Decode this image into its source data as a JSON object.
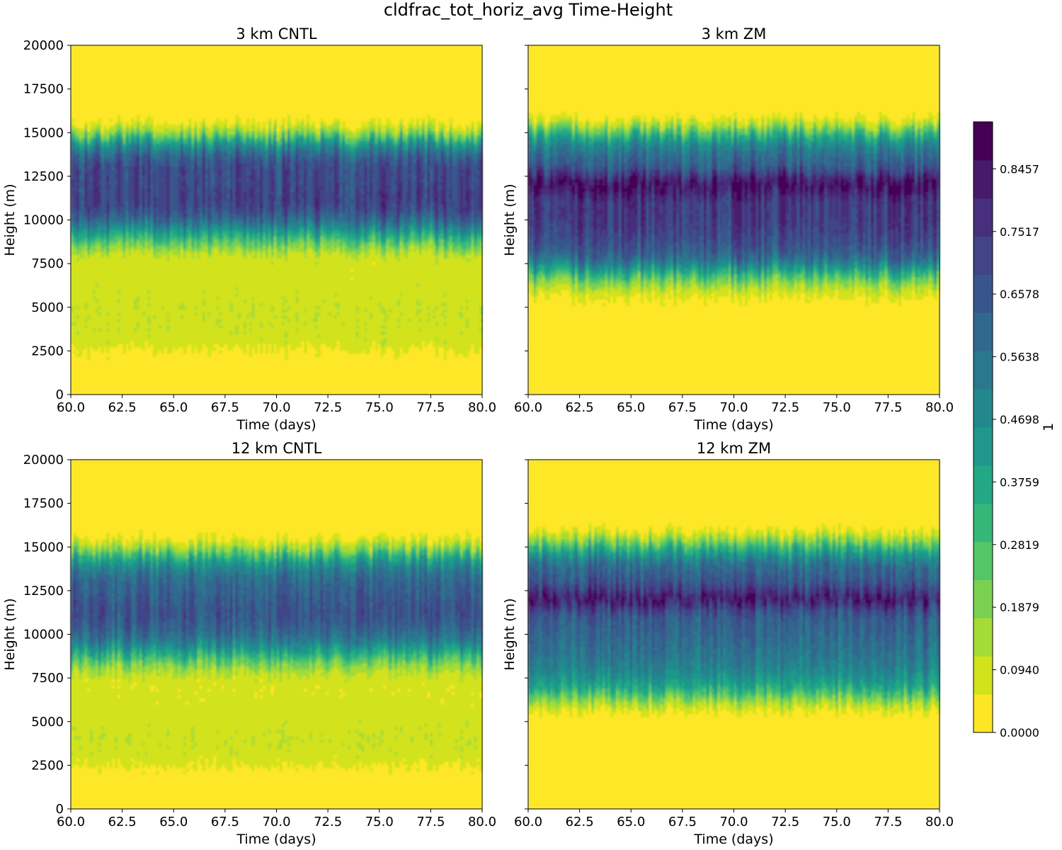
{
  "figure": {
    "title": "cldfrac_tot_horiz_avg Time-Height"
  },
  "colorbar": {
    "label": "1",
    "tick_labels": [
      "0.0000",
      "0.0940",
      "0.1879",
      "0.2819",
      "0.3759",
      "0.4698",
      "0.5638",
      "0.6578",
      "0.7517",
      "0.8457"
    ],
    "ticks": [
      0.0,
      0.094,
      0.1879,
      0.2819,
      0.3759,
      0.4698,
      0.5638,
      0.6578,
      0.7517,
      0.8457
    ],
    "range": [
      0.0,
      0.9162
    ],
    "levels": 19,
    "colormap": "viridis_r",
    "colors": [
      "#fde725",
      "#d2e21b",
      "#a5db36",
      "#7ad151",
      "#54c568",
      "#35b779",
      "#22a884",
      "#1f988b",
      "#23888e",
      "#2a788e",
      "#31688e",
      "#39568c",
      "#414487",
      "#472f7d",
      "#481a6c",
      "#440154"
    ]
  },
  "chart_data": [
    {
      "type": "heatmap",
      "title": "3 km CNTL",
      "xlabel": "Time (days)",
      "ylabel": "Height (m)",
      "xlim": [
        60.0,
        80.0
      ],
      "ylim": [
        0,
        20000
      ],
      "x_ticks": [
        "60.0",
        "62.5",
        "65.0",
        "67.5",
        "70.0",
        "72.5",
        "75.0",
        "77.5",
        "80.0"
      ],
      "y_ticks": [
        "0",
        "2500",
        "5000",
        "7500",
        "10000",
        "12500",
        "15000",
        "17500",
        "20000"
      ],
      "profile_height_m": [
        0,
        1000,
        2000,
        2500,
        3000,
        4000,
        5000,
        6000,
        7000,
        7500,
        8000,
        8500,
        9000,
        9500,
        10000,
        10500,
        11000,
        11500,
        12000,
        12500,
        13000,
        13500,
        14000,
        14500,
        15000,
        15500,
        16000,
        17000,
        20000
      ],
      "profile_cldfrac": [
        0.0,
        0.0,
        0.02,
        0.05,
        0.09,
        0.1,
        0.1,
        0.09,
        0.08,
        0.08,
        0.1,
        0.2,
        0.33,
        0.47,
        0.6,
        0.68,
        0.72,
        0.72,
        0.7,
        0.7,
        0.7,
        0.65,
        0.55,
        0.4,
        0.18,
        0.06,
        0.0,
        0.0,
        0.0
      ]
    },
    {
      "type": "heatmap",
      "title": "3 km ZM",
      "xlabel": "Time (days)",
      "ylabel": "Height (m)",
      "xlim": [
        60.0,
        80.0
      ],
      "ylim": [
        0,
        20000
      ],
      "x_ticks": [
        "60.0",
        "62.5",
        "65.0",
        "67.5",
        "70.0",
        "72.5",
        "75.0",
        "77.5",
        "80.0"
      ],
      "y_ticks": [
        "0",
        "2500",
        "5000",
        "7500",
        "10000",
        "12500",
        "15000",
        "17500",
        "20000"
      ],
      "profile_height_m": [
        0,
        1000,
        2000,
        3000,
        4000,
        5000,
        5500,
        6000,
        6500,
        7000,
        7500,
        8000,
        9000,
        10000,
        11000,
        11500,
        12000,
        12500,
        13000,
        14000,
        14500,
        15000,
        15500,
        16000,
        17000,
        20000
      ],
      "profile_cldfrac": [
        0.0,
        0.0,
        0.0,
        0.0,
        0.0,
        0.02,
        0.05,
        0.1,
        0.2,
        0.35,
        0.5,
        0.62,
        0.7,
        0.74,
        0.74,
        0.8,
        0.88,
        0.78,
        0.65,
        0.55,
        0.45,
        0.3,
        0.12,
        0.02,
        0.0,
        0.0
      ]
    },
    {
      "type": "heatmap",
      "title": "12 km CNTL",
      "xlabel": "Time (days)",
      "ylabel": "Height (m)",
      "xlim": [
        60.0,
        80.0
      ],
      "ylim": [
        0,
        20000
      ],
      "x_ticks": [
        "60.0",
        "62.5",
        "65.0",
        "67.5",
        "70.0",
        "72.5",
        "75.0",
        "77.5",
        "80.0"
      ],
      "y_ticks": [
        "0",
        "2500",
        "5000",
        "7500",
        "10000",
        "12500",
        "15000",
        "17500",
        "20000"
      ],
      "profile_height_m": [
        0,
        1000,
        2000,
        2500,
        3000,
        4000,
        5000,
        6000,
        7000,
        7500,
        8000,
        8500,
        9000,
        9500,
        10000,
        10500,
        11000,
        11500,
        12000,
        12500,
        13000,
        13500,
        14000,
        14500,
        15000,
        15500,
        16000,
        17000,
        20000
      ],
      "profile_cldfrac": [
        0.0,
        0.0,
        0.02,
        0.06,
        0.09,
        0.1,
        0.09,
        0.08,
        0.07,
        0.09,
        0.14,
        0.25,
        0.38,
        0.5,
        0.58,
        0.63,
        0.66,
        0.66,
        0.64,
        0.62,
        0.6,
        0.55,
        0.46,
        0.33,
        0.15,
        0.05,
        0.0,
        0.0,
        0.0
      ]
    },
    {
      "type": "heatmap",
      "title": "12 km ZM",
      "xlabel": "Time (days)",
      "ylabel": "Height (m)",
      "xlim": [
        60.0,
        80.0
      ],
      "ylim": [
        0,
        20000
      ],
      "x_ticks": [
        "60.0",
        "62.5",
        "65.0",
        "67.5",
        "70.0",
        "72.5",
        "75.0",
        "77.5",
        "80.0"
      ],
      "y_ticks": [
        "0",
        "2500",
        "5000",
        "7500",
        "10000",
        "12500",
        "15000",
        "17500",
        "20000"
      ],
      "profile_height_m": [
        0,
        1000,
        2000,
        3000,
        4000,
        5000,
        5500,
        6000,
        6500,
        7000,
        8000,
        9000,
        10000,
        11000,
        11500,
        12000,
        12500,
        13000,
        14000,
        14500,
        15000,
        15500,
        16000,
        17000,
        20000
      ],
      "profile_cldfrac": [
        0.0,
        0.0,
        0.0,
        0.0,
        0.0,
        0.0,
        0.04,
        0.12,
        0.25,
        0.38,
        0.5,
        0.56,
        0.6,
        0.64,
        0.72,
        0.84,
        0.75,
        0.66,
        0.58,
        0.46,
        0.32,
        0.15,
        0.04,
        0.0,
        0.0
      ]
    }
  ]
}
